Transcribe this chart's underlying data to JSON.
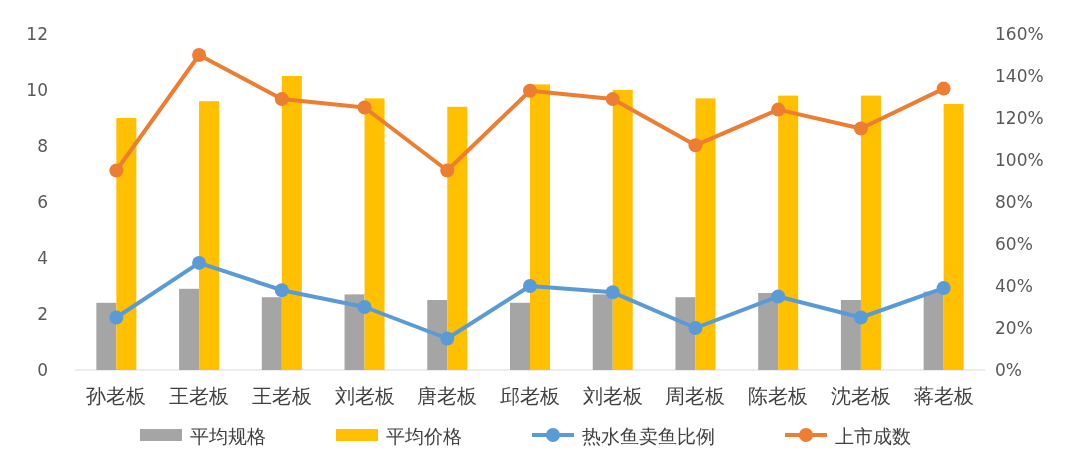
{
  "chart_data": {
    "type": "bar",
    "categories": [
      "孙老板",
      "王老板",
      "王老板",
      "刘老板",
      "唐老板",
      "邱老板",
      "刘老板",
      "周老板",
      "陈老板",
      "沈老板",
      "蒋老板"
    ],
    "series": [
      {
        "name": "平均规格",
        "color": "#a5a5a5",
        "values": [
          2.4,
          2.9,
          2.6,
          2.7,
          2.5,
          2.4,
          2.7,
          2.6,
          2.75,
          2.5,
          2.8
        ]
      },
      {
        "name": "平均价格",
        "color": "#ffc000",
        "values": [
          9.0,
          9.6,
          10.5,
          9.7,
          9.4,
          10.2,
          10.0,
          9.7,
          9.8,
          9.8,
          9.5
        ]
      },
      {
        "name": "热水鱼卖鱼比例",
        "type": "line",
        "axis": "y2",
        "marker": "circle",
        "color": "#5b9bd5",
        "values": [
          25,
          51,
          38,
          30,
          15,
          40,
          37,
          20,
          35,
          25,
          39
        ]
      },
      {
        "name": "上市成数",
        "type": "line",
        "axis": "y2",
        "marker": "circle",
        "color": "#ed7d31",
        "values": [
          95,
          150,
          129,
          125,
          95,
          133,
          129,
          107,
          124,
          115,
          134
        ]
      }
    ],
    "ylim": [
      0,
      12
    ],
    "yticks": [
      0,
      2,
      4,
      6,
      8,
      10,
      12
    ],
    "y2lim": [
      0,
      160
    ],
    "y2ticks": [
      {
        "value": 0,
        "label": "0%"
      },
      {
        "value": 20,
        "label": "20%"
      },
      {
        "value": 40,
        "label": "40%"
      },
      {
        "value": 60,
        "label": "60%"
      },
      {
        "value": 80,
        "label": "80%"
      },
      {
        "value": 100,
        "label": "100%"
      },
      {
        "value": 120,
        "label": "120%"
      },
      {
        "value": 140,
        "label": "140%"
      },
      {
        "value": 160,
        "label": "160%"
      }
    ],
    "legend": "bottom"
  }
}
